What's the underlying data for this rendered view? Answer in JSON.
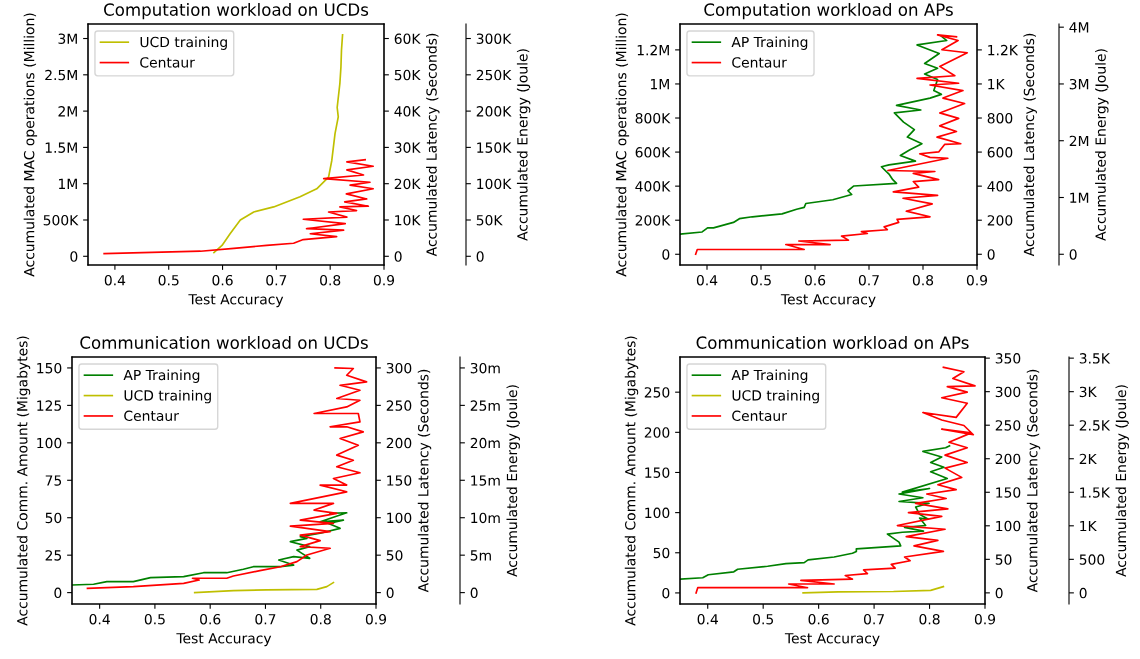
{
  "chart_data": [
    {
      "type": "line",
      "title": "Computation workload on UCDs",
      "xlabel": "Test Accuracy",
      "ylabel": "Accumulated MAC operations (Million)",
      "y2label": "Accumulated Latency (Seconds)",
      "y3label": "Accumulated Energy (Joule)",
      "legend": "top left",
      "xlim": [
        0.35,
        0.9
      ],
      "xticks": [
        0.4,
        0.5,
        0.6,
        0.7,
        0.8,
        0.9
      ],
      "ylim": [
        -120000,
        3200000
      ],
      "yticks": [
        0,
        {
          "value": 500000,
          "label": "500K"
        },
        {
          "value": 1000000,
          "label": "1M"
        },
        {
          "value": 1500000,
          "label": "1.5M"
        },
        {
          "value": 2000000,
          "label": "2M"
        },
        {
          "value": 2500000,
          "label": "2.5M"
        },
        {
          "value": 3000000,
          "label": "3M"
        }
      ],
      "y2lim": [
        -2400,
        64000
      ],
      "y2ticks": [
        0,
        {
          "value": 10000,
          "label": "10K"
        },
        {
          "value": 20000,
          "label": "20K"
        },
        {
          "value": 30000,
          "label": "30K"
        },
        {
          "value": 40000,
          "label": "40K"
        },
        {
          "value": 50000,
          "label": "50K"
        },
        {
          "value": 60000,
          "label": "60K"
        }
      ],
      "y3lim": [
        -12000,
        320000
      ],
      "y3ticks": [
        0,
        {
          "value": 50000,
          "label": "50K"
        },
        {
          "value": 100000,
          "label": "100K"
        },
        {
          "value": 150000,
          "label": "150K"
        },
        {
          "value": 200000,
          "label": "200K"
        },
        {
          "value": 250000,
          "label": "250K"
        },
        {
          "value": 300000,
          "label": "300K"
        }
      ],
      "series": [
        {
          "name": "UCD training",
          "color": "#bfbf00",
          "x": [
            0.584,
            0.599,
            0.614,
            0.633,
            0.658,
            0.695,
            0.744,
            0.775,
            0.797,
            0.803,
            0.809,
            0.815,
            0.813,
            0.818,
            0.82,
            0.821,
            0.823
          ],
          "values": [
            50000,
            150000,
            310000,
            500000,
            610000,
            680000,
            820000,
            930000,
            1090000,
            1320000,
            1690000,
            1920000,
            2050000,
            2380000,
            2610000,
            2840000,
            3050000
          ]
        },
        {
          "name": "Centaur",
          "color": "#ff0000",
          "x": [
            0.38,
            0.559,
            0.621,
            0.682,
            0.732,
            0.75,
            0.812,
            0.763,
            0.825,
            0.756,
            0.828,
            0.75,
            0.831,
            0.797,
            0.849,
            0.818,
            0.871,
            0.827,
            0.868,
            0.83,
            0.88,
            0.837,
            0.874,
            0.788,
            0.862,
            0.831,
            0.88,
            0.831,
            0.865
          ],
          "values": [
            37000,
            70000,
            110000,
            150000,
            180000,
            230000,
            270000,
            310000,
            360000,
            380000,
            450000,
            510000,
            540000,
            610000,
            630000,
            680000,
            690000,
            750000,
            790000,
            860000,
            930000,
            980000,
            1020000,
            1070000,
            1120000,
            1190000,
            1240000,
            1300000,
            1330000
          ]
        }
      ]
    },
    {
      "type": "line",
      "title": "Computation workload on APs",
      "xlabel": "Test Accuracy",
      "ylabel": "Accumulated MAC operations (Million)",
      "y2label": "Accumulated Latency (Seconds)",
      "y3label": "Accumulated Energy (Joule)",
      "legend": "top left",
      "xlim": [
        0.35,
        0.9
      ],
      "xticks": [
        0.4,
        0.5,
        0.6,
        0.7,
        0.8,
        0.9
      ],
      "ylim": [
        -63000,
        1352000
      ],
      "yticks": [
        0,
        {
          "value": 200000,
          "label": "200K"
        },
        {
          "value": 400000,
          "label": "400K"
        },
        {
          "value": 600000,
          "label": "600K"
        },
        {
          "value": 800000,
          "label": "800K"
        },
        {
          "value": 1000000,
          "label": "1M"
        },
        {
          "value": 1200000,
          "label": "1.2M"
        }
      ],
      "y2lim": [
        -63,
        1352
      ],
      "y2ticks": [
        0,
        200,
        400,
        600,
        800,
        {
          "value": 1000,
          "label": "1K"
        },
        {
          "value": 1200,
          "label": "1.2K"
        }
      ],
      "y3lim": [
        -189000,
        4056000
      ],
      "y3ticks": [
        0,
        {
          "value": 1000000,
          "label": "1M"
        },
        {
          "value": 2000000,
          "label": "2M"
        },
        {
          "value": 3000000,
          "label": "3M"
        },
        {
          "value": 4000000,
          "label": "4M"
        }
      ],
      "series": [
        {
          "name": "AP Training",
          "color": "#008000",
          "x": [
            0.35,
            0.391,
            0.401,
            0.412,
            0.449,
            0.46,
            0.484,
            0.539,
            0.566,
            0.58,
            0.583,
            0.633,
            0.668,
            0.661,
            0.672,
            0.751,
            0.744,
            0.737,
            0.723,
            0.737,
            0.786,
            0.758,
            0.775,
            0.798,
            0.771,
            0.784,
            0.764,
            0.747,
            0.796,
            0.751,
            0.813,
            0.834,
            0.82,
            0.827,
            0.803,
            0.827,
            0.803,
            0.83,
            0.789,
            0.844,
            0.834
          ],
          "values": [
            118000,
            131000,
            155000,
            155000,
            187000,
            209000,
            220000,
            237000,
            264000,
            275000,
            298000,
            320000,
            351000,
            373000,
            401000,
            416000,
            438000,
            471000,
            514000,
            525000,
            547000,
            580000,
            612000,
            649000,
            688000,
            732000,
            776000,
            830000,
            847000,
            874000,
            917000,
            939000,
            961000,
            1026000,
            1059000,
            1092000,
            1120000,
            1179000,
            1229000,
            1255000,
            1281000
          ]
        },
        {
          "name": "Centaur",
          "color": "#ff0000",
          "x": [
            0.379,
            0.382,
            0.58,
            0.546,
            0.628,
            0.57,
            0.662,
            0.649,
            0.697,
            0.686,
            0.734,
            0.728,
            0.755,
            0.752,
            0.813,
            0.769,
            0.817,
            0.763,
            0.827,
            0.745,
            0.792,
            0.782,
            0.829,
            0.782,
            0.822,
            0.735,
            0.846,
            0.813,
            0.794,
            0.829,
            0.84,
            0.87,
            0.826,
            0.862,
            0.831,
            0.866,
            0.831,
            0.877,
            0.837,
            0.874,
            0.813,
            0.866,
            0.789,
            0.859,
            0.831,
            0.882,
            0.835,
            0.865,
            0.827,
            0.862
          ],
          "values": [
            0,
            28000,
            28000,
            57000,
            57000,
            78000,
            83000,
            107000,
            122000,
            133000,
            144000,
            161000,
            187000,
            205000,
            220000,
            253000,
            296000,
            329000,
            346000,
            366000,
            394000,
            427000,
            438000,
            475000,
            486000,
            492000,
            564000,
            569000,
            590000,
            601000,
            645000,
            649000,
            688000,
            721000,
            754000,
            798000,
            830000,
            885000,
            917000,
            961000,
            994000,
            1004000,
            1033000,
            1048000,
            1103000,
            1183000,
            1201000,
            1255000,
            1288000,
            1277000
          ]
        }
      ]
    },
    {
      "type": "line",
      "title": "Communication workload on UCDs",
      "xlabel": "Test Accuracy",
      "ylabel": "Accumulated Comm. Amount (Migabytes)",
      "y2label": "Accumulated Latency (Seconds)",
      "y3label": "Accumulated Energy (Joule)",
      "legend": "top left",
      "xlim": [
        0.35,
        0.9
      ],
      "xticks": [
        0.4,
        0.5,
        0.6,
        0.7,
        0.8,
        0.9
      ],
      "ylim": [
        -7.6,
        157.3
      ],
      "yticks": [
        0,
        25,
        50,
        75,
        100,
        125,
        150
      ],
      "y2lim": [
        -15.2,
        314.6
      ],
      "y2ticks": [
        0,
        50,
        100,
        150,
        200,
        250,
        300
      ],
      "y3lim": [
        -1.52,
        31.46
      ],
      "y3ticks": [
        0,
        {
          "value": 5,
          "label": "5m"
        },
        {
          "value": 10,
          "label": "10m"
        },
        {
          "value": 15,
          "label": "15m"
        },
        {
          "value": 20,
          "label": "20m"
        },
        {
          "value": 25,
          "label": "25m"
        },
        {
          "value": 30,
          "label": "30m"
        }
      ],
      "series": [
        {
          "name": "AP Training",
          "color": "#008000",
          "x": [
            0.35,
            0.389,
            0.413,
            0.461,
            0.492,
            0.552,
            0.588,
            0.63,
            0.66,
            0.678,
            0.727,
            0.751,
            0.724,
            0.751,
            0.78,
            0.766,
            0.757,
            0.78,
            0.745,
            0.775,
            0.763,
            0.799,
            0.835,
            0.814,
            0.841,
            0.799,
            0.847,
            0.817
          ],
          "values": [
            5.1,
            5.6,
            7.3,
            7.3,
            10,
            10.7,
            13.3,
            13.3,
            15.6,
            17.3,
            17.3,
            18.4,
            21.8,
            24,
            22.9,
            26.2,
            28.4,
            30.7,
            34,
            36.2,
            37.3,
            39.6,
            42.9,
            46.2,
            48.4,
            47.3,
            53.3,
            52.9
          ]
        },
        {
          "name": "UCD training",
          "color": "#bfbf00",
          "x": [
            0.572,
            0.642,
            0.702,
            0.793,
            0.811,
            0.823
          ],
          "values": [
            0,
            1.3,
            1.8,
            2.2,
            4,
            6.7
          ]
        },
        {
          "name": "Centaur",
          "color": "#ff0000",
          "x": [
            0.378,
            0.461,
            0.552,
            0.58,
            0.568,
            0.63,
            0.642,
            0.69,
            0.727,
            0.757,
            0.775,
            0.817,
            0.763,
            0.799,
            0.763,
            0.817,
            0.745,
            0.823,
            0.763,
            0.829,
            0.788,
            0.823,
            0.745,
            0.847,
            0.799,
            0.847,
            0.823,
            0.871,
            0.829,
            0.859,
            0.829,
            0.868,
            0.835,
            0.877,
            0.847,
            0.817,
            0.871,
            0.868,
            0.788,
            0.847,
            0.871,
            0.829,
            0.871,
            0.835,
            0.883,
            0.847,
            0.859,
            0.826
          ],
          "values": [
            2.9,
            4,
            6.2,
            8.4,
            9.6,
            9.6,
            11.1,
            14.7,
            17.3,
            20.7,
            25.1,
            29.6,
            30.7,
            34.7,
            38.4,
            40.7,
            44.4,
            46.2,
            48.4,
            52.9,
            55.1,
            59.6,
            59.6,
            67.3,
            71.8,
            71.8,
            76.2,
            80,
            84,
            88.4,
            91.8,
            98.4,
            102.9,
            107.3,
            110.7,
            110.7,
            114,
            119.6,
            119.6,
            124,
            128.4,
            129.6,
            135.1,
            138.4,
            140.7,
            145.1,
            149.6,
            150
          ]
        }
      ]
    },
    {
      "type": "line",
      "title": "Communication workload on APs",
      "xlabel": "Test Accuracy",
      "ylabel": "Accumulated Comm. Amount (Migabytes)",
      "y2label": "Accumulated Latency (Seconds)",
      "y3label": "Accumulated Energy (Joule)",
      "legend": "top left",
      "xlim": [
        0.35,
        0.9
      ],
      "xticks": [
        0.4,
        0.5,
        0.6,
        0.7,
        0.8,
        0.9
      ],
      "ylim": [
        -13.8,
        293.8
      ],
      "yticks": [
        0,
        50,
        100,
        150,
        200,
        250
      ],
      "y2lim": [
        -16.6,
        351.7
      ],
      "y2ticks": [
        0,
        50,
        100,
        150,
        200,
        250,
        300,
        350
      ],
      "y3lim": [
        -166,
        3517
      ],
      "y3ticks": [
        0,
        500,
        {
          "value": 1000,
          "label": "1K"
        },
        {
          "value": 1500,
          "label": "1.5K"
        },
        {
          "value": 2000,
          "label": "2K"
        },
        {
          "value": 2500,
          "label": "2.5K"
        },
        {
          "value": 3000,
          "label": "3K"
        },
        {
          "value": 3500,
          "label": "3.5K"
        }
      ],
      "series": [
        {
          "name": "AP Training",
          "color": "#008000",
          "x": [
            0.351,
            0.391,
            0.401,
            0.447,
            0.454,
            0.508,
            0.541,
            0.574,
            0.581,
            0.628,
            0.661,
            0.668,
            0.668,
            0.748,
            0.745,
            0.724,
            0.751,
            0.789,
            0.755,
            0.793,
            0.782,
            0.798,
            0.782,
            0.775,
            0.799,
            0.745,
            0.788,
            0.745,
            0.8,
            0.751,
            0.832,
            0.802,
            0.826,
            0.802,
            0.822,
            0.788,
            0.829,
            0.836
          ],
          "values": [
            17.1,
            18.9,
            22.6,
            26.3,
            29.5,
            33.2,
            36.4,
            37.8,
            41.1,
            44.7,
            49.4,
            51.7,
            54.9,
            58.6,
            63.2,
            73.3,
            75.6,
            77,
            81.6,
            84,
            93.2,
            91.8,
            97.8,
            107,
            111.6,
            113.9,
            118.5,
            123.2,
            130,
            125.5,
            142.5,
            150.8,
            156.4,
            162.4,
            169.3,
            176.2,
            180.8,
            183.1
          ]
        },
        {
          "name": "UCD training",
          "color": "#bfbf00",
          "x": [
            0.572,
            0.635,
            0.735,
            0.802,
            0.825
          ],
          "values": [
            0,
            1.4,
            1.8,
            3.2,
            7.8
          ]
        },
        {
          "name": "Centaur",
          "color": "#ff0000",
          "x": [
            0.379,
            0.382,
            0.58,
            0.546,
            0.628,
            0.568,
            0.661,
            0.648,
            0.688,
            0.681,
            0.738,
            0.731,
            0.765,
            0.755,
            0.825,
            0.772,
            0.815,
            0.758,
            0.828,
            0.742,
            0.822,
            0.762,
            0.833,
            0.775,
            0.83,
            0.795,
            0.848,
            0.815,
            0.858,
            0.828,
            0.868,
            0.828,
            0.868,
            0.835,
            0.875,
            0.822,
            0.879,
            0.862,
            0.822,
            0.788,
            0.848,
            0.868,
            0.822,
            0.868,
            0.832,
            0.882,
            0.842,
            0.862,
            0.825
          ],
          "values": [
            0,
            6.5,
            6.5,
            11.1,
            11.1,
            15.7,
            17.1,
            21.7,
            24,
            28.6,
            30.9,
            35.5,
            40.1,
            44.7,
            51.7,
            58.6,
            65.5,
            70.1,
            79.3,
            83.9,
            95.4,
            100,
            104.7,
            111.6,
            117.6,
            123.2,
            128.7,
            134.7,
            143.9,
            155.4,
            162.4,
            171.6,
            180.8,
            187.7,
            199.3,
            203.9,
            197,
            208.5,
            215.4,
            224.7,
            218.6,
            236.2,
            243.1,
            250,
            256.9,
            257.8,
            267.1,
            275.4,
            280.9
          ]
        }
      ]
    }
  ]
}
